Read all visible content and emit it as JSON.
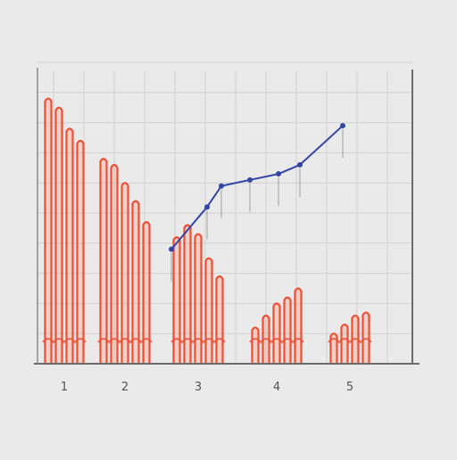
{
  "chart_data": {
    "type": "bar",
    "title": "",
    "xlabel": "",
    "ylabel": "",
    "grid": true,
    "colors": {
      "background": "#ebeaea",
      "bars": "#ee4e32",
      "bars_light": "#f7a08c",
      "line": "#3346a2",
      "axis": "#6b6b6b",
      "grid": "#d0d0d0"
    },
    "categories": [
      "1",
      "2",
      "3",
      "4",
      "5"
    ],
    "series": [
      {
        "kind": "bar",
        "values": [
          [
            88,
            85,
            78,
            74
          ],
          [
            68,
            66,
            60,
            54,
            47
          ],
          [
            42,
            46,
            43,
            35,
            29
          ],
          [
            12,
            16,
            20,
            22,
            25
          ],
          [
            10,
            13,
            16,
            17
          ]
        ]
      },
      {
        "kind": "line",
        "x": [
          2.5,
          3.0,
          3.2,
          3.6,
          4.0,
          4.3,
          4.9
        ],
        "y": [
          38,
          52,
          59,
          61,
          63,
          66,
          79
        ]
      }
    ],
    "ylim": [
      0,
      100
    ]
  }
}
